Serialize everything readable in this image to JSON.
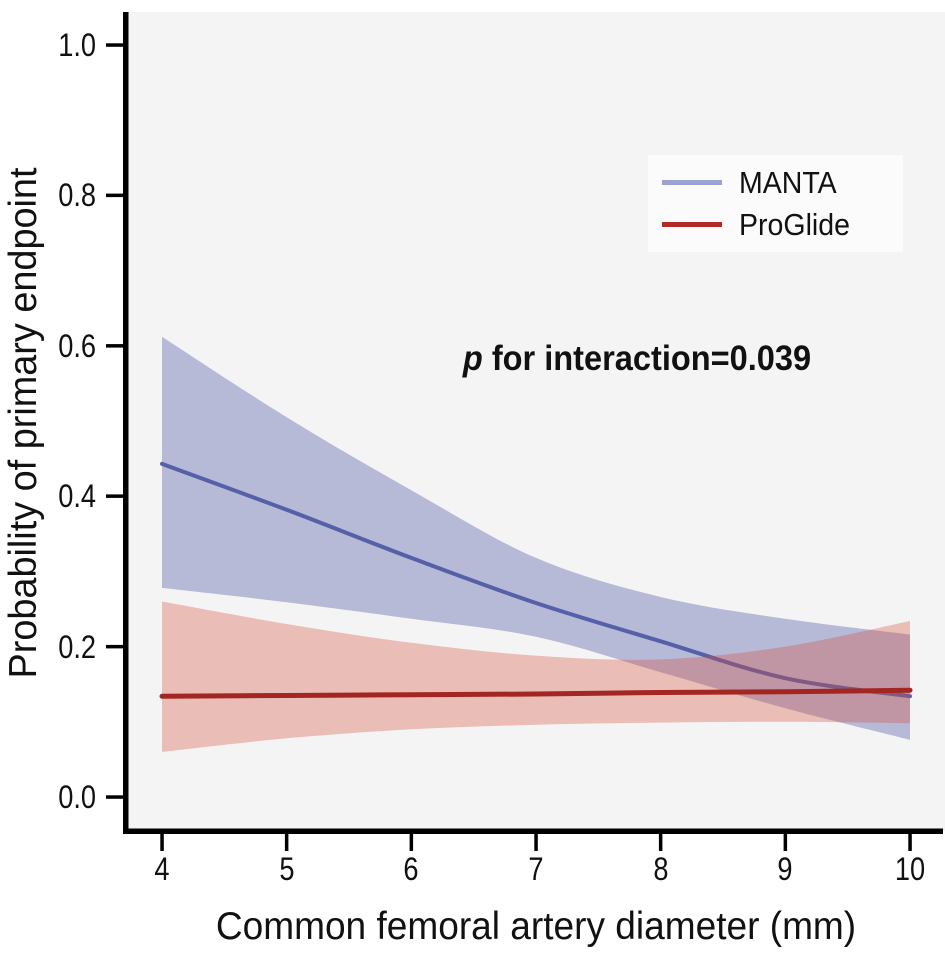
{
  "figure": {
    "y_axis_label": "Probability of primary endpoint",
    "x_axis_label": "Common femoral artery diameter (mm)",
    "annotation": {
      "italic_part": "p",
      "text_part": " for interaction=0.039"
    },
    "legend": {
      "items": [
        {
          "label": "MANTA",
          "swatch_color": "#9aa3d2"
        },
        {
          "label": "ProGlide",
          "swatch_color": "#b22a26"
        }
      ],
      "background": "#fbfbfb",
      "position": "upper right"
    }
  },
  "chart_data": {
    "type": "line",
    "title": "",
    "xlabel": "Common femoral artery diameter (mm)",
    "ylabel": "Probability of primary endpoint",
    "annotation": "p for interaction=0.039",
    "x": [
      4,
      5,
      6,
      7,
      8,
      9,
      10
    ],
    "series": [
      {
        "name": "MANTA",
        "values": [
          0.443,
          0.382,
          0.318,
          0.258,
          0.207,
          0.158,
          0.134
        ],
        "ci_upper": [
          0.612,
          0.505,
          0.408,
          0.318,
          0.266,
          0.237,
          0.216
        ],
        "ci_lower": [
          0.278,
          0.259,
          0.237,
          0.213,
          0.166,
          0.118,
          0.076
        ],
        "line_color": "#5560a8",
        "band_color": "rgba(95,105,175,0.42)",
        "line_width": 4
      },
      {
        "name": "ProGlide",
        "values": [
          0.134,
          0.135,
          0.136,
          0.137,
          0.139,
          0.14,
          0.142
        ],
        "ci_upper": [
          0.26,
          0.23,
          0.205,
          0.188,
          0.183,
          0.2,
          0.234
        ],
        "ci_lower": [
          0.06,
          0.078,
          0.09,
          0.096,
          0.099,
          0.1,
          0.098
        ],
        "line_color": "#a32622",
        "band_color": "rgba(212,80,60,0.33)",
        "line_width": 5
      }
    ],
    "xlim": [
      4,
      10
    ],
    "ylim": [
      0.0,
      1.0
    ],
    "x_ticks": [
      4,
      5,
      6,
      7,
      8,
      9,
      10
    ],
    "x_tick_labels": [
      "4",
      "5",
      "6",
      "7",
      "8",
      "9",
      "10"
    ],
    "y_ticks": [
      0.0,
      0.2,
      0.4,
      0.6,
      0.8,
      1.0
    ],
    "y_tick_labels": [
      "0.0",
      "0.2",
      "0.4",
      "0.6",
      "0.8",
      "1.0"
    ],
    "grid": false,
    "plot_background": "#f5f4f4",
    "axis_color": "#000000",
    "legend_position": "upper right"
  }
}
